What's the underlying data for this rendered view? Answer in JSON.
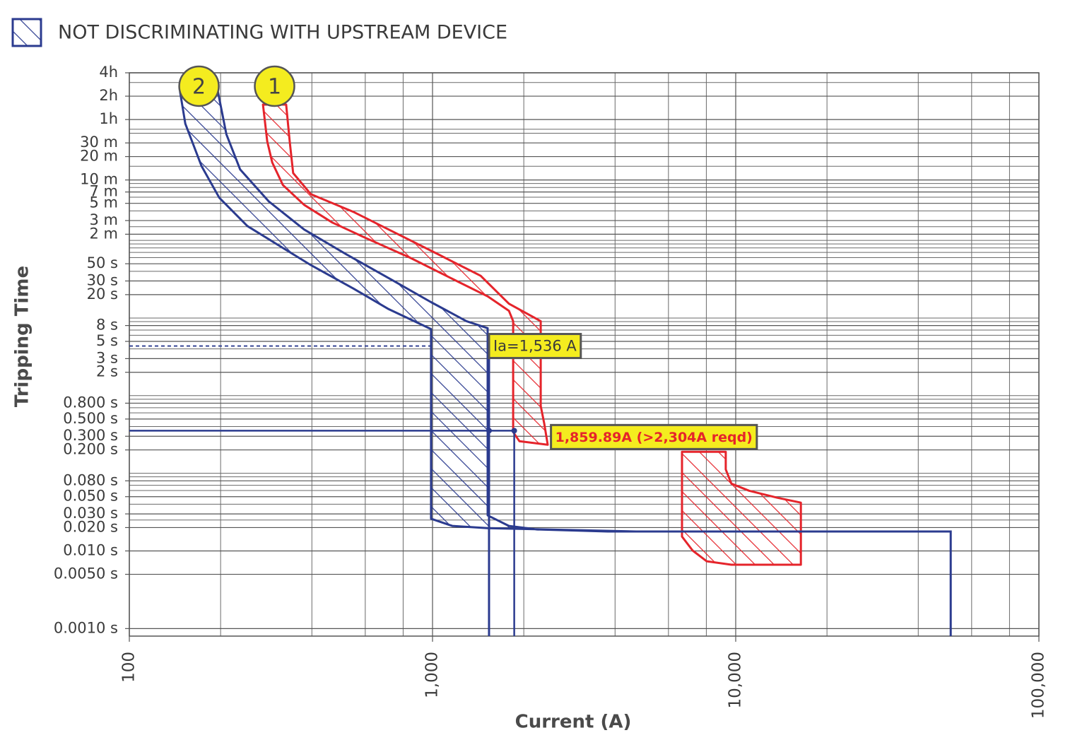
{
  "chart_data": {
    "type": "time-current",
    "note": "NOT DISCRIMINATING WITH UPSTREAM DEVICE",
    "x_label": "Current (A)",
    "y_label": "Tripping Time",
    "xscale": "log",
    "yscale": "log",
    "grid": true,
    "xlim": [
      100,
      100000
    ],
    "ylim": [
      0.0008,
      14400
    ],
    "xticks": [
      100,
      {
        "value": 1000,
        "label": "1,000"
      },
      {
        "value": 10000,
        "label": "10,000"
      },
      {
        "value": 100000,
        "label": "100,000"
      }
    ],
    "xminor": [
      200,
      400,
      600,
      800,
      2000,
      4000,
      6000,
      8000,
      20000,
      40000,
      60000,
      80000
    ],
    "yticks": [
      {
        "value": 14400,
        "label": "4h"
      },
      {
        "value": 7200,
        "label": "2h"
      },
      {
        "value": 3600,
        "label": "1h"
      },
      {
        "value": 1800,
        "label": "30 m"
      },
      {
        "value": 1200,
        "label": "20 m"
      },
      {
        "value": 600,
        "label": "10 m"
      },
      {
        "value": 420,
        "label": "7 m"
      },
      {
        "value": 300,
        "label": "5 m"
      },
      {
        "value": 180,
        "label": "3 m"
      },
      {
        "value": 120,
        "label": "2 m"
      },
      {
        "value": 50,
        "label": "50 s"
      },
      {
        "value": 30,
        "label": "30 s"
      },
      {
        "value": 20,
        "label": "20 s"
      },
      {
        "value": 8,
        "label": "8 s"
      },
      {
        "value": 5,
        "label": "5 s"
      },
      {
        "value": 3,
        "label": "3 s"
      },
      {
        "value": 2,
        "label": "2 s"
      },
      {
        "value": 0.8,
        "label": "0.800 s"
      },
      {
        "value": 0.5,
        "label": "0.500 s"
      },
      {
        "value": 0.3,
        "label": "0.300 s"
      },
      {
        "value": 0.2,
        "label": "0.200 s"
      },
      {
        "value": 0.08,
        "label": "0.080 s"
      },
      {
        "value": 0.05,
        "label": "0.050 s"
      },
      {
        "value": 0.03,
        "label": "0.030 s"
      },
      {
        "value": 0.02,
        "label": "0.020 s"
      },
      {
        "value": 0.01,
        "label": "0.010 s"
      },
      {
        "value": 0.005,
        "label": "0.0050 s"
      },
      {
        "value": 0.001,
        "label": "0.0010 s"
      }
    ],
    "yminor": [
      10800,
      2700,
      2400,
      900,
      540,
      480,
      360,
      240,
      150,
      100,
      90,
      80,
      70,
      60,
      40,
      10,
      9,
      7,
      6,
      4,
      1,
      0.9,
      0.7,
      0.6,
      0.4,
      0.1,
      0.09,
      0.07,
      0.06,
      0.04,
      0.025
    ],
    "series": [
      {
        "name": "1",
        "color": "#e5242b",
        "bands": [
          {
            "x": [
              276,
              285,
              296,
              321,
              377,
              467,
              610,
              842,
              1162,
              1520,
              1786,
              1845,
              1845,
              1935,
              2399,
              2336,
              2274,
              2274,
              1786,
              1441,
              1045,
              757,
              548,
              397,
              347,
              338,
              329
            ],
            "y": [
              5610,
              1890,
              1007,
              516,
              287,
              170,
              105,
              60,
              32,
              19,
              12.4,
              9.1,
              0.34,
              0.259,
              0.233,
              0.436,
              0.736,
              9.1,
              15.3,
              35,
              66,
              124,
              233,
              393,
              736,
              1890,
              5610
            ]
          },
          {
            "x": [
              6650,
              6650,
              7210,
              8020,
              9680,
              16400,
              16400,
              13700,
              11070,
              9680,
              9270,
              9270
            ],
            "y": [
              0.189,
              0.0153,
              0.0101,
              0.00736,
              0.00664,
              0.00664,
              0.0419,
              0.0485,
              0.0597,
              0.0736,
              0.112,
              0.189
            ]
          }
        ],
        "lines": []
      },
      {
        "name": "2",
        "color": "#2b3b8f",
        "bands": [
          {
            "x": [
              147,
              153,
              173,
              198,
              245,
              304,
              397,
              548,
              717,
              989,
              989,
              1162,
              1520,
              4690,
              3785,
              2213,
              1786,
              1520,
              1520,
              1294,
              989,
              757,
              520,
              377,
              288,
              232,
              209,
              196
            ],
            "y": [
              8180,
              3186,
              908,
              354,
              153,
              91,
              48,
              24,
              13,
              7.2,
              0.026,
              0.021,
              0.0197,
              0.0178,
              0.0178,
              0.0189,
              0.021,
              0.0287,
              7.4,
              9.1,
              16,
              29,
              66,
              138,
              319,
              819,
              2328,
              8180
            ]
          }
        ],
        "lines": [
          {
            "x": [
              4690,
              51170,
              51170
            ],
            "y": [
              0.0178,
              0.0178,
              0.0008
            ]
          }
        ]
      }
    ],
    "annotations": [
      {
        "text": "Ia=1,536 A",
        "x": 1536,
        "y": 4.36
      },
      {
        "text": "1,859.89A (>2,304A reqd)",
        "x": 1859.89,
        "y": 0.354
      }
    ]
  }
}
